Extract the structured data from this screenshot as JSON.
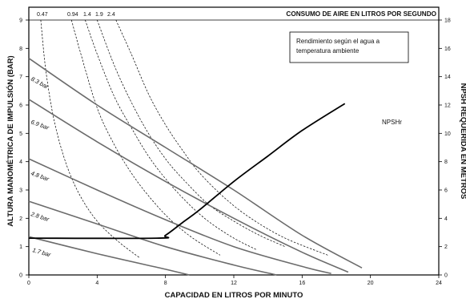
{
  "chart_data": {
    "type": "line",
    "xlabel": "CAPACIDAD EN LITROS POR MINUTO",
    "ylabel": "ALTURA MANOMÉTRICA DE IMPULSIÓN (BAR)",
    "y2label": "NPSH REQUERIDA EN METROS",
    "toplabel": "CONSUMO DE AIRE EN LITROS POR SEGUNDO",
    "note_lines": [
      "Rendimiento según el agua a",
      "temperatura ambiente"
    ],
    "xlim": [
      0,
      24
    ],
    "ylim": [
      0,
      9
    ],
    "y2lim": [
      0,
      18
    ],
    "x_ticks": [
      "0",
      "4",
      "8",
      "12",
      "16",
      "20",
      "24"
    ],
    "y_ticks": [
      "0",
      "1",
      "2",
      "3",
      "4",
      "5",
      "6",
      "7",
      "8",
      "9"
    ],
    "y2_ticks": [
      "0",
      "2",
      "4",
      "6",
      "8",
      "10",
      "12",
      "14",
      "16",
      "18"
    ],
    "top_ticks": [
      "0.47",
      "0.94",
      "1.4",
      "1.9",
      "2.4"
    ],
    "series": [
      {
        "name": "8.3 bar",
        "x": [
          0,
          4,
          8,
          12,
          16,
          19.5
        ],
        "y": [
          7.65,
          6.0,
          4.5,
          3.0,
          1.4,
          0.25
        ]
      },
      {
        "name": "6.9 bar",
        "x": [
          0,
          4,
          8,
          12,
          16,
          18.7
        ],
        "y": [
          6.2,
          4.7,
          3.3,
          2.0,
          0.8,
          0.1
        ]
      },
      {
        "name": "4.8 bar",
        "x": [
          0,
          4,
          8,
          12,
          16,
          17.7
        ],
        "y": [
          4.1,
          3.0,
          1.95,
          1.0,
          0.3,
          0.05
        ]
      },
      {
        "name": "2.8 bar",
        "x": [
          0,
          4,
          8,
          12,
          14.5
        ],
        "y": [
          2.6,
          1.8,
          1.0,
          0.35,
          0.0
        ]
      },
      {
        "name": "1.7 bar",
        "x": [
          0,
          4,
          8,
          9.4
        ],
        "y": [
          1.35,
          0.75,
          0.2,
          0.0
        ]
      },
      {
        "name": "NPSHr",
        "axis": "right",
        "x": [
          0,
          7.5,
          8,
          9,
          10,
          12,
          14,
          16,
          18.5
        ],
        "y": [
          2.6,
          2.6,
          2.8,
          3.7,
          4.6,
          6.6,
          8.4,
          10.2,
          12.1
        ]
      }
    ],
    "air_curves": [
      {
        "label": "0.47",
        "x": [
          0.7,
          1.0,
          1.5,
          2.2,
          3.0,
          4.0,
          5.2,
          6.5
        ],
        "y": [
          9.0,
          7.2,
          5.4,
          3.9,
          2.8,
          1.9,
          1.2,
          0.6
        ]
      },
      {
        "label": "0.94",
        "x": [
          2.5,
          3.0,
          4.0,
          5.0,
          6.0,
          7.0,
          8.2,
          9.6,
          11.2
        ],
        "y": [
          9.0,
          7.9,
          5.9,
          4.6,
          3.6,
          2.8,
          2.0,
          1.3,
          0.7
        ]
      },
      {
        "label": "1.4",
        "x": [
          3.3,
          4.0,
          5.0,
          6.0,
          7.0,
          8.0,
          9.2,
          10.5,
          12.0,
          13.3
        ],
        "y": [
          9.0,
          7.8,
          6.3,
          5.2,
          4.2,
          3.4,
          2.6,
          1.9,
          1.3,
          0.9
        ]
      },
      {
        "label": "1.9",
        "x": [
          4.0,
          5.0,
          6.0,
          7.0,
          8.0,
          9.0,
          10.5,
          12.0,
          13.5,
          15.0
        ],
        "y": [
          9.0,
          7.4,
          6.1,
          5.0,
          4.1,
          3.4,
          2.5,
          1.9,
          1.4,
          1.0
        ]
      },
      {
        "label": "2.4",
        "x": [
          5.1,
          6.0,
          7.0,
          8.0,
          9.0,
          10.0,
          11.5,
          13.0,
          15.0,
          17.5
        ],
        "y": [
          9.0,
          7.8,
          6.4,
          5.3,
          4.4,
          3.6,
          2.7,
          2.0,
          1.3,
          0.7
        ]
      }
    ]
  }
}
